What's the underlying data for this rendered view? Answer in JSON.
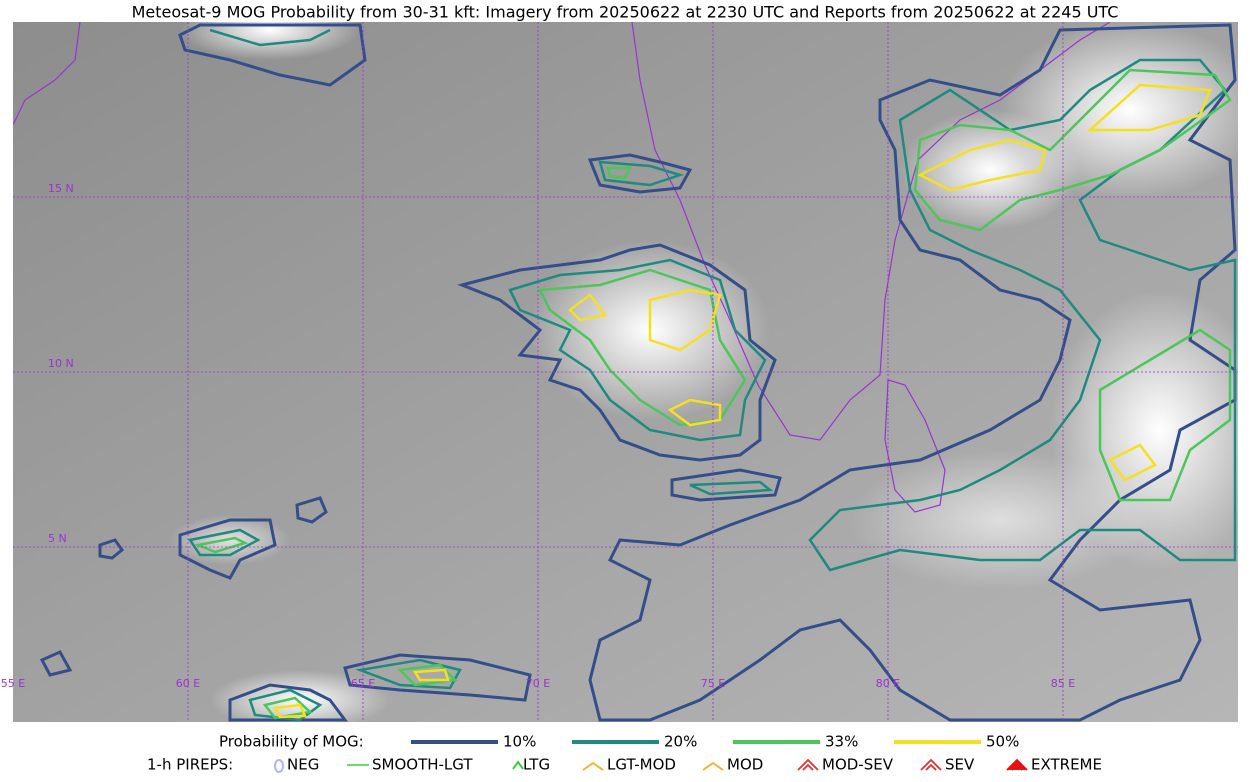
{
  "title": "Meteosat-9 MOG Probability from 30-31 kft: Imagery from 20250622 at 2230 UTC and Reports from 20250622 at 2245 UTC",
  "map": {
    "lat_labels": [
      "15 N",
      "10 N",
      "5 N"
    ],
    "lon_labels": [
      "55 E",
      "60 E",
      "65 E",
      "70 E",
      "75 E",
      "80 E",
      "85 E"
    ]
  },
  "legend": {
    "probability_title": "Probability of MOG:",
    "probability_levels": [
      "10%",
      "20%",
      "33%",
      "50%"
    ],
    "pireps_title": "1-h PIREPS:",
    "pireps": [
      "NEG",
      "SMOOTH-LGT",
      "LTG",
      "LGT-MOD",
      "MOD",
      "MOD-SEV",
      "SEV",
      "EXTREME"
    ]
  }
}
